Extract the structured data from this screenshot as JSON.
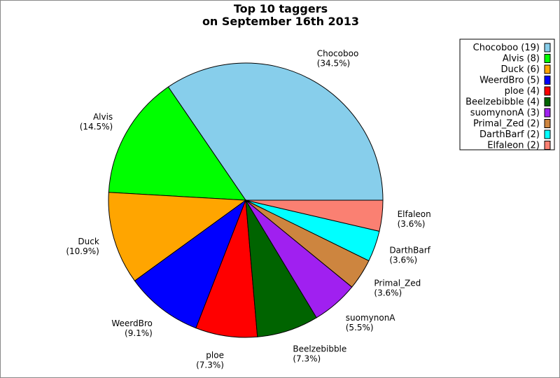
{
  "chart_data": {
    "type": "pie",
    "title": [
      "Top 10 taggers",
      "on September 16th 2013"
    ],
    "start_angle_deg": 0,
    "direction": "counterclockwise",
    "legend_position": "top-right",
    "slices": [
      {
        "name": "Chocoboo",
        "value": 19,
        "percent": "34.5%",
        "color": "#87CEEB",
        "legend": "Chocoboo (19)"
      },
      {
        "name": "Alvis",
        "value": 8,
        "percent": "14.5%",
        "color": "#00FF00",
        "legend": "Alvis (8)"
      },
      {
        "name": "Duck",
        "value": 6,
        "percent": "10.9%",
        "color": "#FFA500",
        "legend": "Duck (6)"
      },
      {
        "name": "WeerdBro",
        "value": 5,
        "percent": "9.1%",
        "color": "#0000FF",
        "legend": "WeerdBro (5)"
      },
      {
        "name": "ploe",
        "value": 4,
        "percent": "7.3%",
        "color": "#FF0000",
        "legend": "ploe (4)"
      },
      {
        "name": "Beelzebibble",
        "value": 4,
        "percent": "7.3%",
        "color": "#006400",
        "legend": "Beelzebibble (4)"
      },
      {
        "name": "suomynonA",
        "value": 3,
        "percent": "5.5%",
        "color": "#A020F0",
        "legend": "suomynonA (3)"
      },
      {
        "name": "Primal_Zed",
        "value": 2,
        "percent": "3.6%",
        "color": "#CD853F",
        "legend": "Primal_Zed (2)"
      },
      {
        "name": "DarthBarf",
        "value": 2,
        "percent": "3.6%",
        "color": "#00FFFF",
        "legend": "DarthBarf (2)"
      },
      {
        "name": "Elfaleon",
        "value": 2,
        "percent": "3.6%",
        "color": "#FA8072",
        "legend": "Elfaleon (2)"
      }
    ]
  }
}
